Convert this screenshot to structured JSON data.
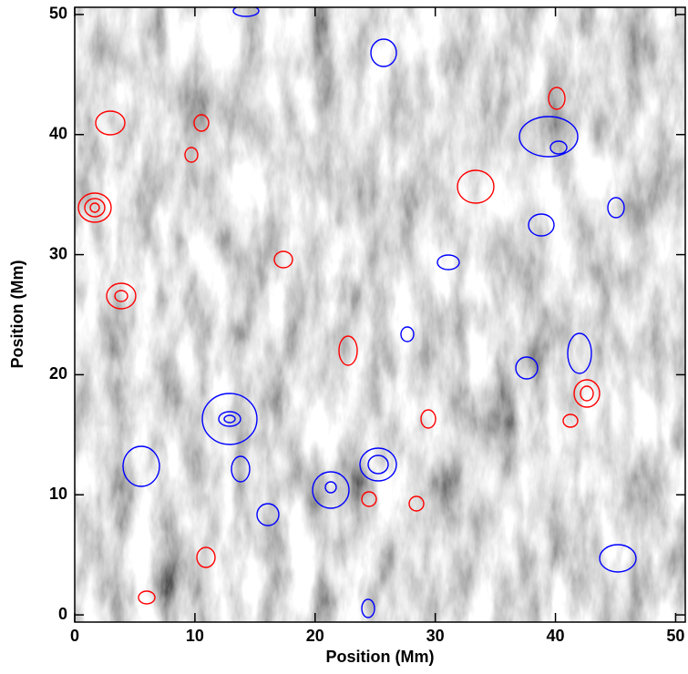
{
  "chart_data": {
    "type": "image",
    "x_label": "Position (Mm)",
    "y_label": "Position (Mm)",
    "xlim": [
      0,
      50.8
    ],
    "ylim": [
      -0.6,
      50.6
    ],
    "xticks": [
      0,
      10,
      20,
      30,
      40,
      50
    ],
    "yticks": [
      0,
      10,
      20,
      30,
      40,
      50
    ],
    "contour_colors": [
      "#ff0000",
      "#0000ff"
    ]
  }
}
